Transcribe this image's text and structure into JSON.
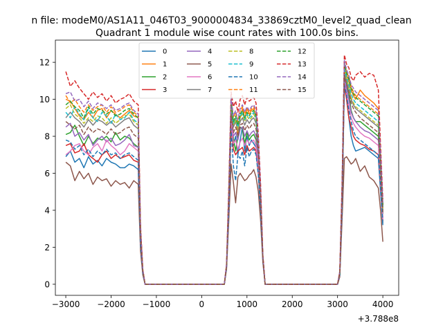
{
  "figure": {
    "suptitle": "n file: modeM0/AS1A11_046T03_9000004834_33869cztM0_level2_quad_clean"
  },
  "chart_data": {
    "type": "line",
    "title": "Quadrant 1 module wise count rates with 100.0s bins.",
    "xlabel": "",
    "ylabel": "",
    "offset_text": "+3.788e8",
    "xlim": [
      -3230,
      4350
    ],
    "ylim": [
      -0.6,
      13.2
    ],
    "x_ticks": [
      -3000,
      -2000,
      -1000,
      0,
      1000,
      2000,
      3000,
      4000
    ],
    "x_tick_labels": [
      "−3000",
      "−2000",
      "−1000",
      "0",
      "1000",
      "2000",
      "3000",
      "4000"
    ],
    "y_ticks": [
      0,
      2,
      4,
      6,
      8,
      10,
      12
    ],
    "y_tick_labels": [
      "0",
      "2",
      "4",
      "6",
      "8",
      "10",
      "12"
    ],
    "legend_placement": "upper center",
    "legend_columns": 4,
    "x": [
      -3000,
      -2900,
      -2800,
      -2700,
      -2600,
      -2500,
      -2400,
      -2300,
      -2200,
      -2100,
      -2000,
      -1900,
      -1800,
      -1700,
      -1600,
      -1500,
      -1400,
      -1350,
      -1300,
      -1250,
      -1200,
      500,
      550,
      600,
      650,
      700,
      750,
      800,
      850,
      900,
      950,
      1000,
      1050,
      1100,
      1150,
      1200,
      1250,
      1300,
      1350,
      1400,
      3000,
      3050,
      3100,
      3150,
      3200,
      3250,
      3300,
      3350,
      3400,
      3500,
      3600,
      3700,
      3800,
      3900,
      3950,
      4000
    ],
    "series": [
      {
        "name": "0",
        "color": "#1f77b4",
        "dash": "solid",
        "values": [
          6.9,
          7.2,
          6.6,
          6.8,
          6.3,
          6.9,
          6.5,
          6.7,
          6.4,
          6.8,
          6.6,
          6.5,
          6.3,
          6.3,
          6.5,
          6.4,
          6.2,
          2.0,
          0.6,
          0,
          0,
          0,
          1.0,
          4.2,
          9.0,
          7.5,
          8.0,
          7.0,
          7.8,
          8.5,
          7.2,
          8.0,
          7.5,
          7.8,
          7.6,
          7.4,
          6.0,
          4.0,
          1.5,
          0,
          0,
          0.5,
          4.2,
          11.0,
          10.0,
          9.0,
          8.0,
          7.5,
          7.2,
          7.3,
          7.4,
          7.2,
          7.0,
          6.8,
          5.0,
          3.2
        ]
      },
      {
        "name": "1",
        "color": "#ff7f0e",
        "dash": "solid",
        "values": [
          10.0,
          9.9,
          9.5,
          9.1,
          8.9,
          9.3,
          9.0,
          9.4,
          9.5,
          9.0,
          9.4,
          9.2,
          9.0,
          9.2,
          9.4,
          9.1,
          9.0,
          3.0,
          0.8,
          0,
          0,
          0,
          1.0,
          5.0,
          9.8,
          8.5,
          9.0,
          8.0,
          9.0,
          9.5,
          9.0,
          9.5,
          9.2,
          9.4,
          9.5,
          9.0,
          7.5,
          5.0,
          1.5,
          0,
          0,
          0.6,
          5.0,
          11.8,
          11.3,
          11.0,
          10.5,
          10.2,
          10.0,
          10.5,
          10.2,
          10.0,
          9.8,
          9.5,
          7.0,
          4.2
        ]
      },
      {
        "name": "2",
        "color": "#2ca02c",
        "dash": "solid",
        "values": [
          8.1,
          8.2,
          8.6,
          8.0,
          7.5,
          8.0,
          7.6,
          7.9,
          7.8,
          8.0,
          7.7,
          8.2,
          7.8,
          8.0,
          7.9,
          7.6,
          7.4,
          2.5,
          0.7,
          0,
          0,
          0,
          1.0,
          4.5,
          9.3,
          7.9,
          7.2,
          8.0,
          8.5,
          8.4,
          7.6,
          8.2,
          7.8,
          8.0,
          8.1,
          7.8,
          6.5,
          4.5,
          1.5,
          0,
          0,
          0.6,
          4.5,
          11.3,
          10.8,
          10.3,
          9.4,
          9.0,
          8.8,
          8.8,
          8.6,
          8.4,
          8.2,
          8.0,
          6.0,
          3.8
        ]
      },
      {
        "name": "3",
        "color": "#d62728",
        "dash": "solid",
        "values": [
          7.5,
          7.6,
          7.1,
          7.2,
          7.6,
          7.0,
          6.8,
          6.6,
          7.0,
          7.2,
          6.8,
          7.0,
          6.8,
          6.9,
          7.0,
          6.7,
          6.6,
          2.2,
          0.6,
          0,
          0,
          0,
          1.0,
          4.0,
          8.5,
          7.3,
          7.0,
          7.2,
          7.3,
          7.4,
          7.0,
          7.5,
          7.2,
          7.3,
          7.4,
          7.2,
          6.0,
          4.2,
          1.4,
          0,
          0,
          0.5,
          4.3,
          10.7,
          10.0,
          9.0,
          8.5,
          8.0,
          7.8,
          7.6,
          7.5,
          7.3,
          7.2,
          7.0,
          5.2,
          3.4
        ]
      },
      {
        "name": "4",
        "color": "#9467bd",
        "dash": "solid",
        "values": [
          8.5,
          8.7,
          8.0,
          8.2,
          7.8,
          8.1,
          7.5,
          7.8,
          8.0,
          7.7,
          7.9,
          7.5,
          7.6,
          7.8,
          8.1,
          7.5,
          7.4,
          2.4,
          0.7,
          0,
          0,
          0,
          1.0,
          4.4,
          9.0,
          8.0,
          8.2,
          7.8,
          8.4,
          8.5,
          8.0,
          8.3,
          8.0,
          8.2,
          8.3,
          8.0,
          6.8,
          4.6,
          1.5,
          0,
          0,
          0.6,
          4.6,
          11.2,
          10.6,
          10.0,
          9.3,
          9.0,
          8.8,
          8.5,
          8.3,
          8.2,
          8.0,
          7.8,
          5.8,
          3.6
        ]
      },
      {
        "name": "5",
        "color": "#8c564b",
        "dash": "solid",
        "values": [
          6.6,
          6.4,
          5.6,
          6.1,
          5.7,
          6.0,
          5.4,
          5.8,
          5.6,
          5.7,
          5.3,
          5.6,
          5.4,
          5.5,
          5.2,
          5.6,
          5.4,
          1.8,
          0.5,
          0,
          0,
          0,
          0.8,
          3.5,
          6.5,
          5.5,
          4.4,
          5.8,
          6.0,
          5.8,
          5.6,
          5.7,
          5.9,
          6.0,
          6.2,
          5.8,
          5.0,
          3.5,
          1.2,
          0,
          0,
          0.4,
          3.5,
          6.8,
          6.9,
          6.7,
          6.5,
          6.6,
          6.8,
          6.1,
          6.4,
          5.8,
          5.6,
          5.2,
          4.0,
          2.3
        ]
      },
      {
        "name": "6",
        "color": "#e377c2",
        "dash": "solid",
        "values": [
          7.0,
          7.2,
          7.5,
          7.6,
          7.2,
          7.0,
          7.4,
          7.6,
          7.2,
          7.8,
          7.5,
          7.3,
          7.0,
          7.2,
          7.6,
          7.4,
          7.2,
          2.3,
          0.6,
          0,
          0,
          0,
          0.9,
          4.0,
          8.8,
          7.6,
          7.8,
          7.3,
          7.7,
          7.9,
          7.5,
          7.8,
          7.6,
          7.7,
          7.8,
          7.5,
          6.3,
          4.3,
          1.4,
          0,
          0,
          0.5,
          4.3,
          11.0,
          10.3,
          9.6,
          9.0,
          8.7,
          8.5,
          8.2,
          8.0,
          7.9,
          7.7,
          7.5,
          5.5,
          3.5
        ]
      },
      {
        "name": "7",
        "color": "#7f7f7f",
        "dash": "solid",
        "values": [
          9.0,
          9.3,
          9.0,
          8.8,
          8.5,
          8.9,
          8.6,
          8.9,
          8.8,
          8.6,
          8.8,
          8.5,
          8.7,
          8.9,
          9.0,
          8.6,
          8.4,
          2.8,
          0.7,
          0,
          0,
          0,
          1.0,
          4.8,
          9.6,
          8.5,
          8.8,
          8.3,
          8.8,
          9.0,
          8.6,
          8.9,
          8.7,
          8.9,
          9.0,
          8.7,
          7.2,
          4.8,
          1.5,
          0,
          0,
          0.6,
          4.8,
          11.5,
          11.0,
          10.6,
          10.0,
          9.7,
          9.5,
          9.3,
          9.1,
          8.9,
          8.7,
          8.5,
          6.3,
          4.0
        ]
      },
      {
        "name": "8",
        "color": "#bcbd22",
        "dash": "dashed",
        "values": [
          9.5,
          9.7,
          9.2,
          9.0,
          8.7,
          9.0,
          8.8,
          9.1,
          9.0,
          8.7,
          9.0,
          8.7,
          8.9,
          9.1,
          9.2,
          8.8,
          8.6,
          2.8,
          0.7,
          0,
          0,
          0,
          1.0,
          4.8,
          9.7,
          8.6,
          8.9,
          8.4,
          9.0,
          9.2,
          8.8,
          9.1,
          8.9,
          9.0,
          9.2,
          8.9,
          7.3,
          4.9,
          1.5,
          0,
          0,
          0.6,
          4.9,
          11.6,
          11.1,
          10.7,
          10.1,
          9.8,
          9.6,
          9.4,
          9.2,
          9.0,
          8.8,
          8.6,
          6.4,
          4.1
        ]
      },
      {
        "name": "9",
        "color": "#17becf",
        "dash": "dashed",
        "values": [
          9.3,
          9.0,
          9.6,
          9.2,
          8.9,
          9.5,
          9.0,
          8.8,
          9.3,
          9.1,
          8.7,
          9.2,
          8.9,
          9.0,
          9.3,
          8.9,
          8.7,
          2.8,
          0.7,
          0,
          0,
          0,
          1.0,
          4.8,
          9.8,
          8.7,
          9.0,
          8.5,
          9.1,
          9.3,
          8.9,
          9.2,
          9.0,
          9.1,
          9.3,
          9.0,
          7.4,
          5.0,
          1.5,
          0,
          0,
          0.6,
          5.0,
          11.7,
          11.2,
          10.8,
          10.3,
          10.0,
          9.8,
          9.6,
          9.4,
          9.2,
          9.0,
          8.8,
          6.5,
          4.2
        ]
      },
      {
        "name": "10",
        "color": "#1f77b4",
        "dash": "dashed",
        "values": [
          7.8,
          7.7,
          7.3,
          7.5,
          7.0,
          7.3,
          6.9,
          7.2,
          7.0,
          7.3,
          7.0,
          7.1,
          6.8,
          7.0,
          7.1,
          6.9,
          6.7,
          2.2,
          0.6,
          0,
          0,
          0,
          0.9,
          4.0,
          8.4,
          6.4,
          5.6,
          7.0,
          6.8,
          7.2,
          6.4,
          7.4,
          6.9,
          7.2,
          7.3,
          7.0,
          5.9,
          4.1,
          1.4,
          0,
          0,
          0.5,
          4.2,
          10.8,
          10.2,
          9.4,
          8.8,
          8.3,
          8.0,
          7.8,
          7.6,
          7.4,
          7.2,
          7.0,
          5.2,
          3.3
        ]
      },
      {
        "name": "11",
        "color": "#ff7f0e",
        "dash": "dashed",
        "values": [
          10.2,
          9.8,
          10.0,
          9.6,
          9.3,
          9.7,
          9.4,
          9.6,
          9.7,
          9.3,
          9.6,
          9.3,
          9.4,
          9.6,
          9.7,
          9.3,
          9.1,
          3.0,
          0.8,
          0,
          0,
          0,
          1.1,
          5.1,
          10.0,
          9.0,
          9.3,
          8.8,
          9.4,
          9.6,
          9.2,
          9.5,
          9.3,
          9.5,
          9.6,
          9.3,
          7.7,
          5.2,
          1.6,
          0,
          0,
          0.7,
          5.2,
          11.9,
          11.5,
          11.2,
          10.7,
          10.4,
          10.2,
          10.0,
          9.8,
          9.6,
          9.4,
          9.2,
          6.8,
          4.3
        ]
      },
      {
        "name": "12",
        "color": "#2ca02c",
        "dash": "dashed",
        "values": [
          9.7,
          9.9,
          9.6,
          9.4,
          9.0,
          9.6,
          9.2,
          9.5,
          9.4,
          9.2,
          9.4,
          9.1,
          9.2,
          9.4,
          9.5,
          9.2,
          9.0,
          2.9,
          0.7,
          0,
          0,
          0,
          1.0,
          4.9,
          9.9,
          8.8,
          9.1,
          8.6,
          9.2,
          9.4,
          9.0,
          9.3,
          9.1,
          9.3,
          9.4,
          9.1,
          7.5,
          5.1,
          1.5,
          0,
          0,
          0.6,
          5.1,
          12.0,
          11.4,
          11.1,
          10.6,
          10.3,
          10.1,
          9.9,
          9.7,
          9.5,
          9.3,
          9.1,
          6.7,
          4.3
        ]
      },
      {
        "name": "13",
        "color": "#d62728",
        "dash": "dashed",
        "values": [
          11.5,
          10.7,
          11.0,
          10.6,
          10.3,
          10.0,
          10.4,
          10.1,
          10.3,
          9.9,
          10.2,
          9.8,
          10.0,
          10.1,
          10.3,
          9.9,
          9.7,
          3.2,
          0.8,
          0,
          0,
          0,
          1.1,
          5.4,
          10.4,
          9.6,
          9.9,
          9.3,
          10.0,
          10.2,
          9.7,
          10.1,
          9.9,
          10.0,
          10.1,
          9.8,
          8.1,
          5.5,
          1.6,
          0,
          0,
          0.7,
          5.5,
          12.4,
          11.9,
          11.7,
          11.2,
          11.0,
          11.3,
          11.5,
          11.2,
          11.4,
          11.3,
          10.5,
          7.5,
          4.6
        ]
      },
      {
        "name": "14",
        "color": "#9467bd",
        "dash": "dashed",
        "values": [
          10.3,
          10.4,
          9.9,
          10.0,
          9.6,
          9.9,
          9.5,
          9.8,
          9.7,
          9.5,
          9.7,
          9.4,
          9.5,
          9.7,
          9.8,
          9.4,
          9.2,
          3.0,
          0.8,
          0,
          0,
          0,
          1.1,
          5.1,
          10.1,
          9.1,
          9.4,
          8.9,
          9.5,
          9.7,
          9.3,
          9.6,
          9.4,
          9.6,
          9.7,
          9.4,
          7.8,
          5.2,
          1.6,
          0,
          0,
          0.7,
          5.3,
          12.1,
          11.6,
          11.3,
          10.8,
          10.6,
          10.4,
          10.2,
          10.0,
          9.8,
          9.6,
          9.4,
          7.0,
          4.4
        ]
      },
      {
        "name": "15",
        "color": "#8c564b",
        "dash": "dashed",
        "values": [
          8.8,
          8.6,
          8.4,
          8.6,
          8.1,
          8.5,
          8.2,
          8.4,
          8.3,
          8.1,
          8.4,
          8.1,
          8.2,
          8.4,
          8.5,
          8.1,
          7.9,
          2.6,
          0.7,
          0,
          0,
          0,
          1.0,
          4.5,
          9.2,
          8.2,
          8.5,
          8.0,
          8.6,
          8.7,
          8.3,
          8.6,
          8.4,
          8.6,
          8.7,
          8.4,
          7.0,
          4.7,
          1.5,
          0,
          0,
          0.6,
          4.7,
          11.3,
          10.8,
          10.4,
          9.8,
          9.5,
          9.3,
          9.0,
          8.8,
          8.6,
          8.4,
          8.2,
          6.1,
          3.9
        ]
      }
    ]
  }
}
